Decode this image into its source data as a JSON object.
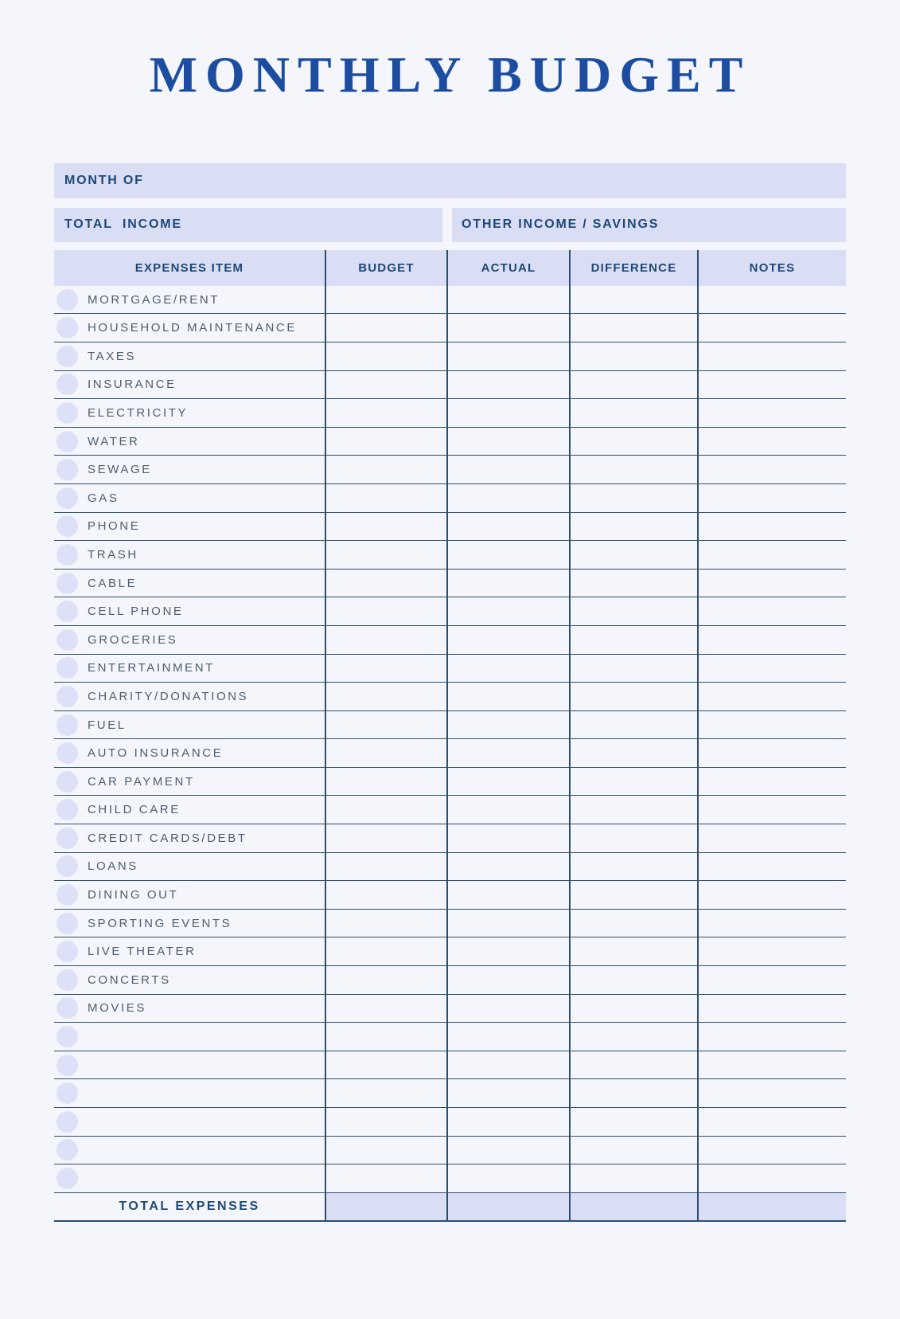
{
  "page": {
    "title": "MONTHLY BUDGET",
    "month_of_label": "MONTH OF",
    "total_income_label": "TOTAL  INCOME",
    "other_income_label": "OTHER INCOME / SAVINGS",
    "colors": {
      "background": "#f4f6fb",
      "accent_lavender": "#d9def5",
      "bullet": "#dde1f7",
      "navy_label": "#1e4878",
      "title_blue": "#1c4da0",
      "table_line": "#2e4e6e",
      "item_text": "#4e5d71"
    }
  },
  "table": {
    "headers": [
      "EXPENSES ITEM",
      "BUDGET",
      "ACTUAL",
      "DIFFERENCE",
      "NOTES"
    ],
    "items": [
      "MORTGAGE/RENT",
      "HOUSEHOLD MAINTENANCE",
      "TAXES",
      "INSURANCE",
      "ELECTRICITY",
      "WATER",
      "SEWAGE",
      "GAS",
      "PHONE",
      "TRASH",
      "CABLE",
      "CELL PHONE",
      "GROCERIES",
      "ENTERTAINMENT",
      "CHARITY/DONATIONS",
      "FUEL",
      "AUTO INSURANCE",
      "CAR PAYMENT",
      "CHILD CARE",
      "CREDIT CARDS/DEBT",
      "LOANS",
      "DINING OUT",
      "SPORTING EVENTS",
      "LIVE THEATER",
      "CONCERTS",
      "MOVIES"
    ],
    "empty_row_count": 6,
    "cell_values": "",
    "total_label": "TOTAL EXPENSES"
  }
}
